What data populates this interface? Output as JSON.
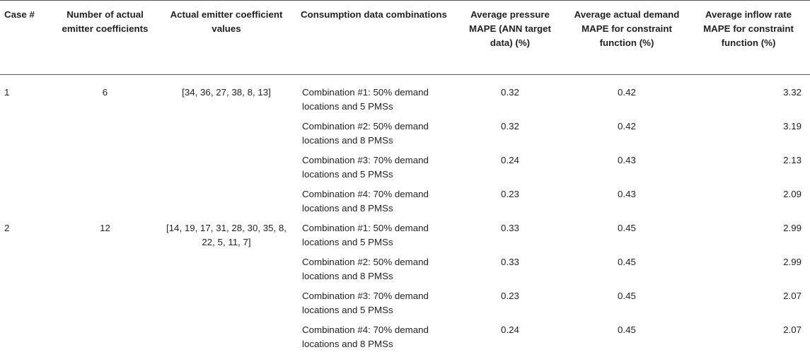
{
  "table": {
    "headers": [
      "Case #",
      "Number of actual emitter coefficients",
      "Actual emitter coefficient values",
      "Consumption data combinations",
      "Average pressure MAPE (ANN target data) (%)",
      "Average actual demand MAPE for constraint function (%)",
      "Average inflow rate MAPE for constraint function (%)"
    ],
    "cases": [
      {
        "case": "1",
        "num_coefficients": "6",
        "coefficient_values": "[34, 36, 27, 38, 8, 13]",
        "rows": [
          {
            "combination": "Combination #1: 50% demand locations and 5 PMSs",
            "pressure": "0.32",
            "demand": "0.42",
            "inflow": "3.32"
          },
          {
            "combination": "Combination #2: 50% demand locations and 8 PMSs",
            "pressure": "0.32",
            "demand": "0.42",
            "inflow": "3.19"
          },
          {
            "combination": "Combination #3: 70% demand locations and 5 PMSs",
            "pressure": "0.24",
            "demand": "0.43",
            "inflow": "2.13"
          },
          {
            "combination": "Combination #4: 70% demand locations and 8 PMSs",
            "pressure": "0.23",
            "demand": "0.43",
            "inflow": "2.09"
          }
        ]
      },
      {
        "case": "2",
        "num_coefficients": "12",
        "coefficient_values": "[14, 19, 17, 31, 28, 30, 35, 8, 22, 5, 11, 7]",
        "rows": [
          {
            "combination": "Combination #1: 50% demand locations and 5 PMSs",
            "pressure": "0.33",
            "demand": "0.45",
            "inflow": "2.99"
          },
          {
            "combination": "Combination #2: 50% demand locations and 8 PMSs",
            "pressure": "0.33",
            "demand": "0.45",
            "inflow": "2.99"
          },
          {
            "combination": "Combination #3: 70% demand locations and 5 PMSs",
            "pressure": "0.23",
            "demand": "0.45",
            "inflow": "2.07"
          },
          {
            "combination": "Combination #4: 70% demand locations and 8 PMSs",
            "pressure": "0.24",
            "demand": "0.45",
            "inflow": "2.07"
          }
        ]
      }
    ]
  }
}
